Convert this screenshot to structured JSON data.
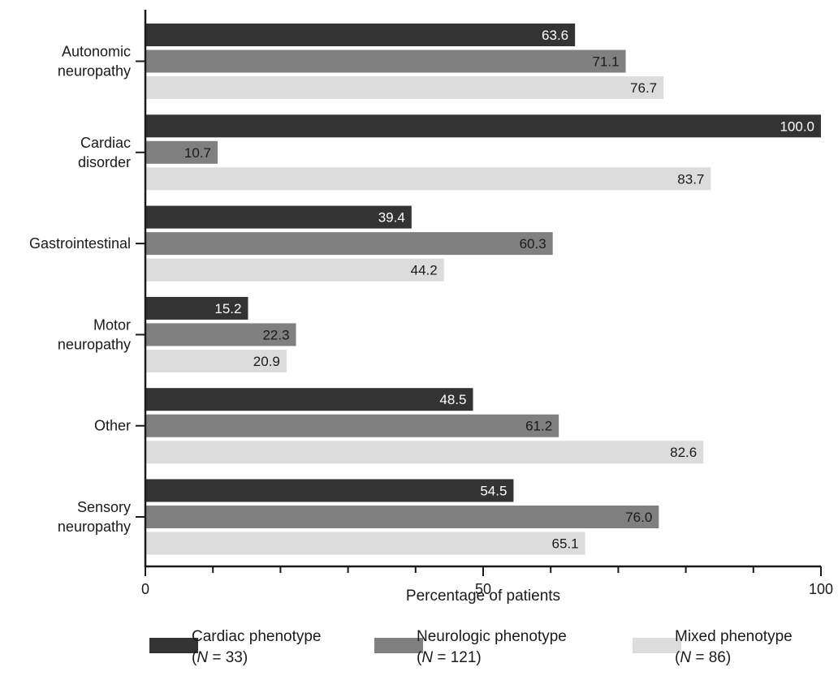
{
  "chart_data": {
    "type": "bar",
    "orientation": "horizontal",
    "categories": [
      [
        "Autonomic",
        "neuropathy"
      ],
      [
        "Cardiac",
        "disorder"
      ],
      [
        "Gastrointestinal"
      ],
      [
        "Motor",
        "neuropathy"
      ],
      [
        "Other"
      ],
      [
        "Sensory",
        "neuropathy"
      ]
    ],
    "series": [
      {
        "name_line1": "Cardiac phenotype",
        "n_label": "N",
        "n_value": " = 33",
        "color": "#333333",
        "value_color": "#ffffff",
        "values": [
          63.6,
          100.0,
          39.4,
          15.2,
          48.5,
          54.5
        ]
      },
      {
        "name_line1": "Neurologic phenotype",
        "n_label": "N",
        "n_value": " = 121",
        "color": "#808080",
        "value_color": "#1a1a1a",
        "values": [
          71.1,
          10.7,
          60.3,
          22.3,
          61.2,
          76.0
        ]
      },
      {
        "name_line1": "Mixed phenotype",
        "n_label": "N",
        "n_value": " = 86",
        "color": "#dcdcdc",
        "value_color": "#1a1a1a",
        "values": [
          76.7,
          83.7,
          44.2,
          20.9,
          82.6,
          65.1
        ]
      }
    ],
    "xlabel": "Percentage of patients",
    "xlim": [
      0,
      100
    ],
    "major_ticks": [
      0,
      50,
      100
    ],
    "minor_step": 10,
    "value_decimals": 1,
    "grid": false,
    "legend_position": "bottom"
  }
}
